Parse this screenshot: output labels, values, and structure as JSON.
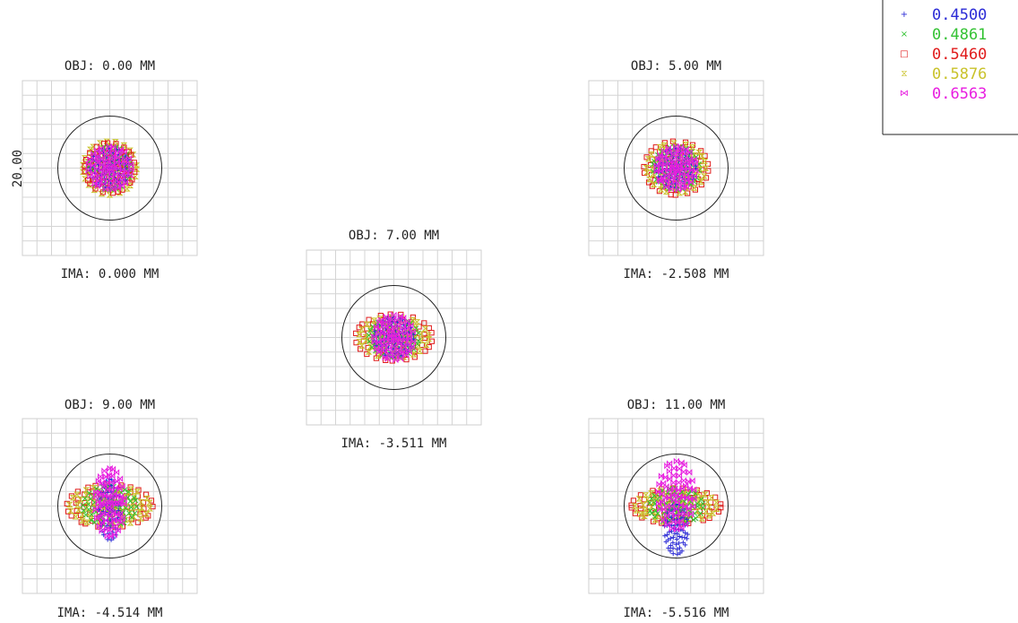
{
  "scale_bar": {
    "label": "20.00"
  },
  "legend": {
    "items": [
      {
        "marker": "+",
        "label": "0.4500",
        "color": "#2b2bd6"
      },
      {
        "marker": "×",
        "label": "0.4861",
        "color": "#33c233"
      },
      {
        "marker": "□",
        "label": "0.5460",
        "color": "#e01a1a"
      },
      {
        "marker": "⧖",
        "label": "0.5876",
        "color": "#c9c22a"
      },
      {
        "marker": "⋈",
        "label": "0.6563",
        "color": "#e81ee0"
      }
    ]
  },
  "spots": [
    {
      "obj": "OBJ: 0.00 MM",
      "ima": "IMA: 0.000 MM"
    },
    {
      "obj": "OBJ: 5.00 MM",
      "ima": "IMA: -2.508 MM"
    },
    {
      "obj": "OBJ: 7.00 MM",
      "ima": "IMA: -3.511 MM"
    },
    {
      "obj": "OBJ: 9.00 MM",
      "ima": "IMA: -4.514 MM"
    },
    {
      "obj": "OBJ: 11.00 MM",
      "ima": "IMA: -5.516 MM"
    }
  ]
}
